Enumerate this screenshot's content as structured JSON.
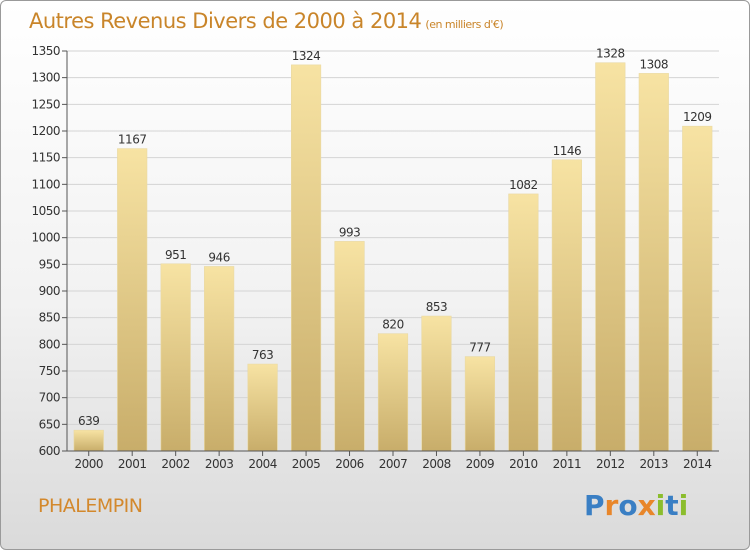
{
  "title": "Autres Revenus Divers de 2000 à 2014",
  "subtitle": "(en milliers d'€)",
  "location": "PHALEMPIN",
  "brand": {
    "text": "Proxiti",
    "letters": [
      {
        "ch": "P",
        "color": "#3a7fc4"
      },
      {
        "ch": "r",
        "color": "#e8862a"
      },
      {
        "ch": "o",
        "color": "#3a7fc4"
      },
      {
        "ch": "x",
        "color": "#e8862a"
      },
      {
        "ch": "i",
        "color": "#8bbd2d"
      },
      {
        "ch": "t",
        "color": "#3a7fc4"
      },
      {
        "ch": "i",
        "color": "#8bbd2d"
      }
    ]
  },
  "colors": {
    "title": "#c9852a",
    "bar_top": "#f7e3a3",
    "bar_bottom": "#c8ad6a",
    "grid": "#d4d4d4",
    "axis": "#555555"
  },
  "chart_data": {
    "type": "bar",
    "categories": [
      "2000",
      "2001",
      "2002",
      "2003",
      "2004",
      "2005",
      "2006",
      "2007",
      "2008",
      "2009",
      "2010",
      "2011",
      "2012",
      "2013",
      "2014"
    ],
    "values": [
      639,
      1167,
      951,
      946,
      763,
      1324,
      993,
      820,
      853,
      777,
      1082,
      1146,
      1328,
      1308,
      1209
    ],
    "ylim": [
      600,
      1350
    ],
    "yticks": [
      600,
      650,
      700,
      750,
      800,
      850,
      900,
      950,
      1000,
      1050,
      1100,
      1150,
      1200,
      1250,
      1300,
      1350
    ],
    "grid": true
  }
}
